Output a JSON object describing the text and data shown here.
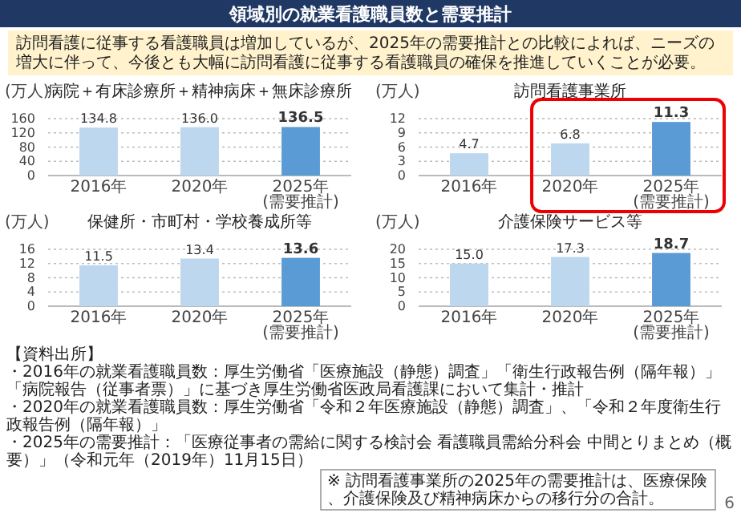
{
  "chart_data": [
    {
      "type": "other",
      "title": "領域別の就業看護職員数と需要推計",
      "subtitle": "訪問看護に従事する看護職員は増加しているが、2025年の需要推計との比較によれば、ニーズの増大に伴って、今後とも大幅に訪問看護に従事する看護職員の確保を推進していくことが必要。"
    },
    {
      "type": "bar",
      "title": "病院＋有床診療所＋精神病床＋無床診療所",
      "ylabel": "(万人)",
      "categories": [
        "2016年",
        "2020年",
        "2025年 (需要推計)"
      ],
      "values": [
        134.8,
        136.0,
        136.5
      ],
      "value_labels": [
        "134.8",
        "136.0",
        "136.5"
      ],
      "colors": [
        "#bdd7ee",
        "#bdd7ee",
        "#5b9bd5"
      ],
      "ylim": [
        0,
        160
      ],
      "yticks": [
        0,
        40,
        80,
        120,
        160
      ],
      "grid": "y"
    },
    {
      "type": "bar",
      "title": "訪問看護事業所",
      "ylabel": "(万人)",
      "categories": [
        "2016年",
        "2020年",
        "2025年 (需要推計)"
      ],
      "values": [
        4.7,
        6.8,
        11.3
      ],
      "value_labels": [
        "4.7",
        "6.8",
        "11.3"
      ],
      "colors": [
        "#bdd7ee",
        "#bdd7ee",
        "#5b9bd5"
      ],
      "ylim": [
        0,
        12
      ],
      "yticks": [
        0,
        3,
        6,
        9,
        12
      ],
      "grid": "y"
    },
    {
      "type": "bar",
      "title": "保健所・市町村・学校養成所等",
      "ylabel": "(万人)",
      "categories": [
        "2016年",
        "2020年",
        "2025年 (需要推計)"
      ],
      "values": [
        11.5,
        13.4,
        13.6
      ],
      "value_labels": [
        "11.5",
        "13.4",
        "13.6"
      ],
      "colors": [
        "#bdd7ee",
        "#bdd7ee",
        "#5b9bd5"
      ],
      "ylim": [
        0,
        16
      ],
      "yticks": [
        0,
        4,
        8,
        12,
        16
      ],
      "grid": "y"
    },
    {
      "type": "bar",
      "title": "介護保険サービス等",
      "ylabel": "(万人)",
      "categories": [
        "2016年",
        "2020年",
        "2025年 (需要推計)"
      ],
      "values": [
        15.0,
        17.3,
        18.7
      ],
      "value_labels": [
        "15.0",
        "17.3",
        "18.7"
      ],
      "colors": [
        "#bdd7ee",
        "#bdd7ee",
        "#5b9bd5"
      ],
      "ylim": [
        0,
        20
      ],
      "yticks": [
        0,
        5,
        10,
        15,
        20
      ],
      "grid": "y"
    },
    {
      "type": "other",
      "annotations": [
        "【資料出所】",
        "・2016年の就業看護職員数：厚生労働省「医療施設（静態）調査」「衛生行政報告例（隔年報）」「病院報告（従事者票）」に基づき厚生労働省医政局看護課において集計・推計",
        "・2020年の就業看護職員数：厚生労働省「令和２年医療施設（静態）調査」、「令和２年度衛生行政報告例（隔年報）」",
        "・2025年の需要推計：「医療従事者の需給に関する検討会 看護職員需給分科会 中間とりまとめ（概要）」（令和元年（2019年）11月15日）",
        "※ 訪問看護事業所の2025年の需要推計は、医療保険、介護保険及び精神病床からの移行分の合計。",
        "6"
      ]
    }
  ]
}
